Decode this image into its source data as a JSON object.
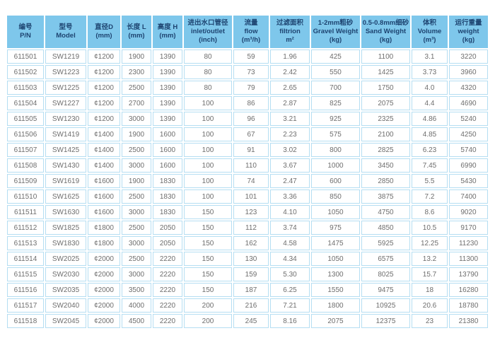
{
  "table": {
    "columns": [
      {
        "zh": "编号",
        "en": "P/N"
      },
      {
        "zh": "型号",
        "en": "Model"
      },
      {
        "zh": "直径D",
        "en": "(mm)"
      },
      {
        "zh": "长度 L",
        "en": "(mm)"
      },
      {
        "zh": "高度 H",
        "en": "(mm)"
      },
      {
        "zh": "进出水口管径",
        "en": "inlet/outlet",
        "unit": "(inch)"
      },
      {
        "zh": "流量",
        "en": "flow",
        "unit": "(m³/h)"
      },
      {
        "zh": "过滤面积",
        "en": "filtrion",
        "unit": "m²"
      },
      {
        "zh": "1-2mm粗砂",
        "en": "Gravel Weight",
        "unit": "(kg)"
      },
      {
        "zh": "0.5-0.8mm细砂",
        "en": "Sand Weight",
        "unit": "(kg)"
      },
      {
        "zh": "体积",
        "en": "Volume",
        "unit": "(m³)"
      },
      {
        "zh": "运行重量",
        "en": "weight",
        "unit": "(kg)"
      }
    ],
    "rows": [
      [
        "611501",
        "SW1219",
        "¢1200",
        "1900",
        "1390",
        "80",
        "59",
        "1.96",
        "425",
        "1100",
        "3.1",
        "3220"
      ],
      [
        "611502",
        "SW1223",
        "¢1200",
        "2300",
        "1390",
        "80",
        "73",
        "2.42",
        "550",
        "1425",
        "3.73",
        "3960"
      ],
      [
        "611503",
        "SW1225",
        "¢1200",
        "2500",
        "1390",
        "80",
        "79",
        "2.65",
        "700",
        "1750",
        "4.0",
        "4320"
      ],
      [
        "611504",
        "SW1227",
        "¢1200",
        "2700",
        "1390",
        "100",
        "86",
        "2.87",
        "825",
        "2075",
        "4.4",
        "4690"
      ],
      [
        "611505",
        "SW1230",
        "¢1200",
        "3000",
        "1390",
        "100",
        "96",
        "3.21",
        "925",
        "2325",
        "4.86",
        "5240"
      ],
      [
        "611506",
        "SW1419",
        "¢1400",
        "1900",
        "1600",
        "100",
        "67",
        "2.23",
        "575",
        "2100",
        "4.85",
        "4250"
      ],
      [
        "611507",
        "SW1425",
        "¢1400",
        "2500",
        "1600",
        "100",
        "91",
        "3.02",
        "800",
        "2825",
        "6.23",
        "5740"
      ],
      [
        "611508",
        "SW1430",
        "¢1400",
        "3000",
        "1600",
        "100",
        "110",
        "3.67",
        "1000",
        "3450",
        "7.45",
        "6990"
      ],
      [
        "611509",
        "SW1619",
        "¢1600",
        "1900",
        "1830",
        "100",
        "74",
        "2.47",
        "600",
        "2850",
        "5.5",
        "5430"
      ],
      [
        "611510",
        "SW1625",
        "¢1600",
        "2500",
        "1830",
        "100",
        "101",
        "3.36",
        "850",
        "3875",
        "7.2",
        "7400"
      ],
      [
        "611511",
        "SW1630",
        "¢1600",
        "3000",
        "1830",
        "150",
        "123",
        "4.10",
        "1050",
        "4750",
        "8.6",
        "9020"
      ],
      [
        "611512",
        "SW1825",
        "¢1800",
        "2500",
        "2050",
        "150",
        "112",
        "3.74",
        "975",
        "4850",
        "10.5",
        "9170"
      ],
      [
        "611513",
        "SW1830",
        "¢1800",
        "3000",
        "2050",
        "150",
        "162",
        "4.58",
        "1475",
        "5925",
        "12.25",
        "11230"
      ],
      [
        "611514",
        "SW2025",
        "¢2000",
        "2500",
        "2220",
        "150",
        "130",
        "4.34",
        "1050",
        "6575",
        "13.2",
        "11300"
      ],
      [
        "611515",
        "SW2030",
        "¢2000",
        "3000",
        "2220",
        "150",
        "159",
        "5.30",
        "1300",
        "8025",
        "15.7",
        "13790"
      ],
      [
        "611516",
        "SW2035",
        "¢2000",
        "3500",
        "2220",
        "150",
        "187",
        "6.25",
        "1550",
        "9475",
        "18",
        "16280"
      ],
      [
        "611517",
        "SW2040",
        "¢2000",
        "4000",
        "2220",
        "200",
        "216",
        "7.21",
        "1800",
        "10925",
        "20.6",
        "18780"
      ],
      [
        "611518",
        "SW2045",
        "¢2000",
        "4500",
        "2220",
        "200",
        "245",
        "8.16",
        "2075",
        "12375",
        "23",
        "21380"
      ]
    ],
    "colors": {
      "header_bg": "#7ec7eb",
      "header_text": "#1d4370",
      "cell_border": "#b5def2",
      "cell_text": "#6e6e6e",
      "page_bg": "#ffffff"
    }
  }
}
